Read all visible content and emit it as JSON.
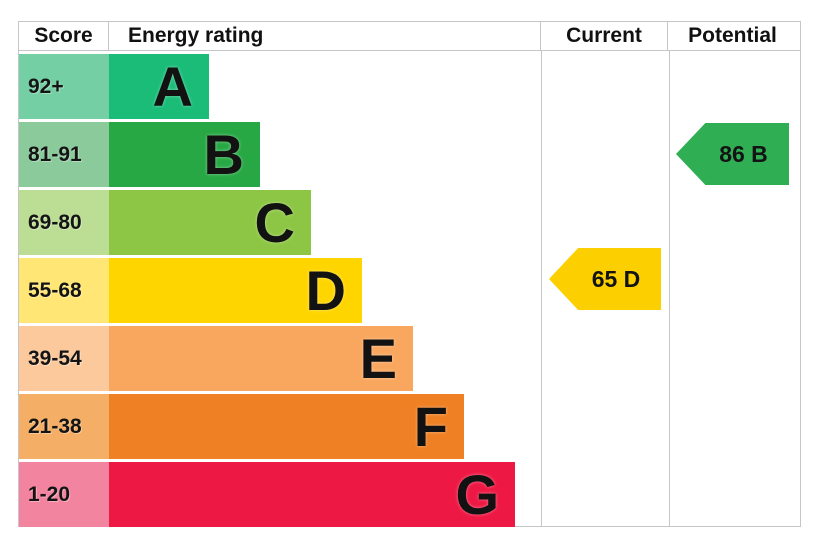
{
  "header": {
    "score": "Score",
    "energy_rating": "Energy rating",
    "current": "Current",
    "potential": "Potential"
  },
  "chart_data": {
    "type": "bar",
    "orientation": "horizontal",
    "title": "Energy rating",
    "columns": [
      "Score",
      "Energy rating",
      "Current",
      "Potential"
    ],
    "bands": [
      {
        "letter": "A",
        "score_range": "92+",
        "bar_color": "#1abc78",
        "score_bg": "#74cfa5",
        "relative_width": 1
      },
      {
        "letter": "B",
        "score_range": "81-91",
        "bar_color": "#28a845",
        "score_bg": "#8bca9b",
        "relative_width": 2
      },
      {
        "letter": "C",
        "score_range": "69-80",
        "bar_color": "#8dc644",
        "score_bg": "#bcdd94",
        "relative_width": 3
      },
      {
        "letter": "D",
        "score_range": "55-68",
        "bar_color": "#ffd500",
        "score_bg": "#ffe675",
        "relative_width": 4
      },
      {
        "letter": "E",
        "score_range": "39-54",
        "bar_color": "#f9a75f",
        "score_bg": "#fbc99b",
        "relative_width": 5
      },
      {
        "letter": "F",
        "score_range": "21-38",
        "bar_color": "#ef8023",
        "score_bg": "#f4ae65",
        "relative_width": 6
      },
      {
        "letter": "G",
        "score_range": "1-20",
        "bar_color": "#ed1944",
        "score_bg": "#f2849f",
        "relative_width": 7
      }
    ],
    "current": {
      "value": 65,
      "rating": "D",
      "label": "65 D",
      "color": "#fcd000"
    },
    "potential": {
      "value": 86,
      "rating": "B",
      "label": "86 B",
      "color": "#2fae54"
    }
  }
}
